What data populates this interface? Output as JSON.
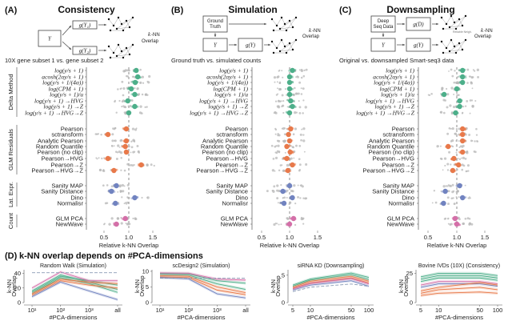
{
  "colors": {
    "delta": "#4daf8a",
    "glm": "#e8794a",
    "latent": "#7183c0",
    "count": "#d46fa8",
    "grey": "#b8b8b8",
    "axis": "#333333"
  },
  "panels_abc": [
    {
      "label": "(A)",
      "title": "Consistency",
      "subtitle": "10X gene subset 1 vs. gene subset 2",
      "diagram": {
        "input": "Y",
        "box1": "g(Y₁)",
        "box2": "g(Y₂)",
        "output": "k-NN Overlap"
      },
      "values": [
        1.15,
        1.18,
        1.13,
        1.05,
        1.12,
        0.98,
        1.12,
        1.0,
        0.95,
        0.58,
        0.95,
        0.93,
        0.95,
        0.58,
        1.25,
        0.7,
        0.75,
        0.65,
        1.12,
        0.73,
        0.93,
        0.75
      ]
    },
    {
      "label": "(B)",
      "title": "Simulation",
      "subtitle": "Ground truth vs. simulated counts",
      "diagram": {
        "top": "Ground Truth",
        "input": "Y",
        "box1": "g(Y)",
        "output": "k-NN Overlap"
      },
      "values": [
        1.05,
        1.0,
        1.0,
        1.0,
        1.0,
        1.02,
        1.05,
        1.0,
        1.02,
        0.98,
        1.0,
        0.95,
        1.01,
        0.95,
        1.05,
        0.97,
        1.0,
        0.88,
        1.05,
        0.9,
        1.07,
        1.0
      ]
    },
    {
      "label": "(C)",
      "title": "Downsampling",
      "subtitle": "Original vs. downsampled Smart-seq3 data",
      "diagram": {
        "top": "Deep Seq Data",
        "input": "Y",
        "box0": "g(D)",
        "box1": "g(Y)",
        "annotation": "Reliable Neigh.",
        "output": "k-NN Overlap"
      },
      "values": [
        1.1,
        1.1,
        1.1,
        1.0,
        0.78,
        1.05,
        1.05,
        0.98,
        1.1,
        1.1,
        1.1,
        0.85,
        1.1,
        0.95,
        1.03,
        0.93,
        1.05,
        0.8,
        1.1,
        0.77,
        0.97,
        1.0
      ]
    }
  ],
  "rows": [
    {
      "label": "log(y/s + 1)",
      "group": "delta",
      "math": true
    },
    {
      "label": "acosh(2αy/s + 1)",
      "group": "delta",
      "math": true
    },
    {
      "label": "log(y/s + 1/(4α))",
      "group": "delta",
      "math": true
    },
    {
      "label": "log(CPM + 1)",
      "group": "delta",
      "math": true
    },
    {
      "label": "log(y/s + 1)/u",
      "group": "delta",
      "math": true
    },
    {
      "label": "log(y/s + 1) →HVG",
      "group": "delta",
      "math": true
    },
    {
      "label": "log(y/s + 1) →Z",
      "group": "delta",
      "math": true
    },
    {
      "label": "log(y/s + 1) →HVG→Z",
      "group": "delta",
      "math": true
    },
    {
      "label": "Pearson",
      "group": "glm"
    },
    {
      "label": "sctransform",
      "group": "glm"
    },
    {
      "label": "Analytic Pearson",
      "group": "glm"
    },
    {
      "label": "Random Quantile",
      "group": "glm"
    },
    {
      "label": "Pearson (no clip)",
      "group": "glm"
    },
    {
      "label": "Pearson→HVG",
      "group": "glm"
    },
    {
      "label": "Pearson→Z",
      "group": "glm"
    },
    {
      "label": "Pearson→HVG→Z",
      "group": "glm"
    },
    {
      "label": "Sanity MAP",
      "group": "latent"
    },
    {
      "label": "Sanity Distance",
      "group": "latent"
    },
    {
      "label": "Dino",
      "group": "latent"
    },
    {
      "label": "Normalisr",
      "group": "latent"
    },
    {
      "label": "GLM PCA",
      "group": "count"
    },
    {
      "label": "NewWave",
      "group": "count"
    }
  ],
  "groups": {
    "delta": "Delta Method",
    "glm": "GLM Residuals",
    "latent": "Lat. Expr.",
    "count": "Count"
  },
  "x_axis": {
    "label": "Relative k-NN Overlap",
    "ticks": [
      "0.5",
      "1.0",
      "1.5"
    ],
    "tick_values": [
      0.5,
      1.0,
      1.5
    ],
    "range": [
      0.15,
      1.85
    ]
  },
  "panel_d": {
    "label": "(D)",
    "title": "k-NN overlap depends on #PCA-dimensions",
    "ylabel": "k-NN Overlap",
    "xlabel": "#PCA-dimensions"
  },
  "chart_data": [
    {
      "type": "line",
      "title": "Random Walk (Simulation)",
      "xlabel": "#PCA-dimensions",
      "ylabel": "k-NN Overlap",
      "x": [
        "10^1",
        "10^2",
        "10^3",
        "all"
      ],
      "x_tick_labels": [
        "10¹",
        "10²",
        "10³",
        "all"
      ],
      "y_ticks": [
        "0",
        "20",
        "40"
      ],
      "ylim": [
        0,
        45
      ],
      "series": [
        {
          "name": "delta-1",
          "group": "delta",
          "values": [
            14,
            36,
            30,
            24
          ]
        },
        {
          "name": "delta-2",
          "group": "delta",
          "values": [
            16,
            38,
            28,
            18
          ]
        },
        {
          "name": "delta-3",
          "group": "delta",
          "values": [
            12,
            34,
            26,
            14
          ]
        },
        {
          "name": "glm-1",
          "group": "glm",
          "values": [
            12,
            32,
            28,
            26
          ]
        },
        {
          "name": "glm-2",
          "group": "glm",
          "values": [
            10,
            30,
            24,
            20
          ]
        },
        {
          "name": "latent-1",
          "group": "latent",
          "values": [
            8,
            28,
            16,
            4
          ]
        },
        {
          "name": "count-1",
          "group": "count",
          "values": [
            20,
            42,
            30,
            30
          ]
        },
        {
          "name": "grey-dashed",
          "group": "grey",
          "dashed": true,
          "values": [
            41,
            41,
            41,
            41
          ]
        }
      ]
    },
    {
      "type": "line",
      "title": "scDesign2 (Simulation)",
      "xlabel": "#PCA-dimensions",
      "ylabel": "k-NN Overlap",
      "x": [
        "10^1",
        "10^2",
        "10^3",
        "all"
      ],
      "x_tick_labels": [
        "10¹",
        "10²",
        "10³",
        "all"
      ],
      "y_ticks": [
        "0",
        "5",
        "10"
      ],
      "ylim": [
        0,
        10.5
      ],
      "series": [
        {
          "name": "delta-1",
          "group": "delta",
          "values": [
            9.3,
            9.2,
            7.0,
            6.2
          ]
        },
        {
          "name": "delta-2",
          "group": "delta",
          "values": [
            9.0,
            8.8,
            6.0,
            4.2
          ]
        },
        {
          "name": "glm-1",
          "group": "glm",
          "values": [
            8.6,
            8.4,
            5.0,
            3.2
          ]
        },
        {
          "name": "glm-2",
          "group": "glm",
          "values": [
            8.2,
            8.0,
            4.0,
            2.5
          ]
        },
        {
          "name": "latent-1",
          "group": "latent",
          "values": [
            8.0,
            7.6,
            2.8,
            1.5
          ]
        },
        {
          "name": "count-1",
          "group": "count",
          "values": [
            9.5,
            9.4,
            7.5,
            7.2
          ]
        },
        {
          "name": "grey-dashed",
          "group": "grey",
          "dashed": true,
          "values": [
            7.8,
            7.8,
            7.8,
            7.8
          ]
        }
      ]
    },
    {
      "type": "line",
      "title": "siRNA KD (Downsampling)",
      "xlabel": "#PCA-dimensions",
      "ylabel": "k-NN Overlap",
      "x": [
        5,
        10,
        50,
        100
      ],
      "x_tick_labels": [
        "5",
        "10",
        "50",
        "100"
      ],
      "y_ticks": [
        "0",
        "5"
      ],
      "ylim": [
        0,
        6
      ],
      "series": [
        {
          "name": "delta-1",
          "group": "delta",
          "values": [
            3.2,
            4.3,
            5.4,
            4.6
          ]
        },
        {
          "name": "delta-2",
          "group": "delta",
          "values": [
            3.0,
            4.1,
            5.1,
            4.2
          ]
        },
        {
          "name": "glm-1",
          "group": "glm",
          "values": [
            2.8,
            3.9,
            4.8,
            3.9
          ]
        },
        {
          "name": "glm-2",
          "group": "glm",
          "values": [
            2.6,
            3.6,
            4.5,
            3.6
          ]
        },
        {
          "name": "latent-1",
          "group": "latent",
          "values": [
            2.3,
            3.2,
            4.0,
            3.0
          ]
        },
        {
          "name": "count-1",
          "group": "count",
          "values": [
            2.5,
            3.5,
            4.4,
            3.4
          ]
        },
        {
          "name": "grey-dashed",
          "group": "grey",
          "dashed": true,
          "values": [
            2.0,
            2.8,
            3.4,
            3.0
          ]
        }
      ]
    },
    {
      "type": "line",
      "title": "Bovine IVDs (10X) (Consistency)",
      "xlabel": "#PCA-dimensions",
      "ylabel": "k-NN Overlap",
      "x": [
        5,
        10,
        50,
        100
      ],
      "x_tick_labels": [
        "5",
        "10",
        "50",
        "100"
      ],
      "y_ticks": [
        "0",
        "25"
      ],
      "ylim": [
        0,
        28
      ],
      "series": [
        {
          "name": "delta-1",
          "group": "delta",
          "values": [
            22,
            25,
            25,
            23
          ]
        },
        {
          "name": "delta-2",
          "group": "delta",
          "values": [
            20,
            23,
            23,
            21
          ]
        },
        {
          "name": "delta-3",
          "group": "delta",
          "values": [
            18,
            21,
            21,
            19
          ]
        },
        {
          "name": "count-1",
          "group": "count",
          "values": [
            15,
            18,
            18,
            16
          ]
        },
        {
          "name": "latent-1",
          "group": "latent",
          "values": [
            13,
            16,
            16,
            14
          ]
        },
        {
          "name": "glm-1",
          "group": "glm",
          "values": [
            10,
            13,
            17,
            15
          ]
        },
        {
          "name": "glm-2",
          "group": "glm",
          "values": [
            8,
            11,
            13,
            11
          ]
        },
        {
          "name": "glm-3",
          "group": "glm",
          "values": [
            6,
            8,
            9,
            8
          ]
        }
      ]
    }
  ]
}
